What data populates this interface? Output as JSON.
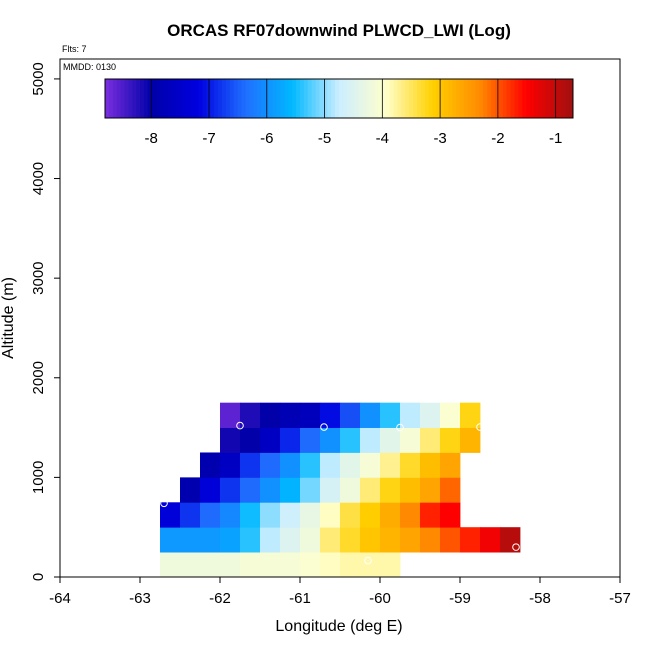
{
  "chart_data": {
    "type": "heatmap",
    "title": "ORCAS RF07downwind PLWCD_LWI (Log)",
    "flights_label": "Flts: 7",
    "date_label": "MMDD: 0130",
    "xlabel": "Longitude (deg E)",
    "ylabel": "Altitude (m)",
    "xlim": [
      -64,
      -57
    ],
    "ylim": [
      0,
      5200
    ],
    "x_ticks": [
      "-64",
      "-63",
      "-62",
      "-61",
      "-60",
      "-59",
      "-58",
      "-57"
    ],
    "y_ticks": [
      "0",
      "1000",
      "2000",
      "3000",
      "4000",
      "5000"
    ],
    "colorbar": {
      "range": [
        -8.8,
        -0.7
      ],
      "ticks": [
        "-8",
        "-7",
        "-6",
        "-5",
        "-4",
        "-3",
        "-2",
        "-1"
      ],
      "colors": [
        "#7b2fe0",
        "#0000a8",
        "#0000e0",
        "#1f6fff",
        "#00b8ff",
        "#cceeff",
        "#ffffcc",
        "#ffd000",
        "#ff8c00",
        "#ff0000",
        "#a01010"
      ]
    },
    "bin_width_deg": 0.25,
    "bin_height_m": 250,
    "rows": [
      {
        "alt_low": 0,
        "lon_start": -62.75,
        "values": [
          -4.2,
          -4.2,
          -4.2,
          -4.2,
          -4.1,
          -4.1,
          -4.1,
          -4.0,
          -3.9,
          -3.8,
          -3.8,
          -3.8
        ]
      },
      {
        "alt_low": 250,
        "lon_start": -62.75,
        "values": [
          -5.9,
          -5.9,
          -5.9,
          -5.8,
          -5.4,
          -4.8,
          -4.5,
          -4.2,
          -3.6,
          -3.3,
          -3.0,
          -2.8,
          -2.6,
          -2.3,
          -2.0,
          -1.7,
          -1.4,
          -0.9
        ]
      },
      {
        "alt_low": 500,
        "lon_start": -62.75,
        "values": [
          -7.3,
          -6.8,
          -6.4,
          -6.1,
          -5.5,
          -5.0,
          -4.7,
          -4.3,
          -3.9,
          -3.4,
          -3.1,
          -2.7,
          -2.3,
          -1.7,
          -1.5
        ]
      },
      {
        "alt_low": 750,
        "lon_start": -62.5,
        "values": [
          -7.9,
          -7.3,
          -6.8,
          -6.4,
          -6.0,
          -5.6,
          -5.1,
          -4.6,
          -4.2,
          -3.6,
          -3.2,
          -2.9,
          -2.6,
          -2.1
        ]
      },
      {
        "alt_low": 1000,
        "lon_start": -62.25,
        "values": [
          -7.9,
          -7.6,
          -6.8,
          -6.4,
          -6.0,
          -5.4,
          -4.8,
          -4.4,
          -4.1,
          -3.7,
          -3.3,
          -2.9,
          -2.6
        ]
      },
      {
        "alt_low": 1250,
        "lon_start": -62.0,
        "values": [
          -8.1,
          -8.0,
          -7.6,
          -6.9,
          -6.4,
          -6.0,
          -5.4,
          -4.8,
          -4.4,
          -4.1,
          -3.6,
          -3.2,
          -2.8
        ]
      },
      {
        "alt_low": 1500,
        "lon_start": -62.0,
        "values": [
          -8.6,
          -8.2,
          -8.0,
          -7.8,
          -7.7,
          -7.1,
          -6.6,
          -6.0,
          -5.4,
          -4.8,
          -4.5,
          -4.0,
          -3.2
        ]
      }
    ],
    "sample_points": [
      {
        "lon": -62.7,
        "alt": 740
      },
      {
        "lon": -61.75,
        "alt": 1520
      },
      {
        "lon": -60.7,
        "alt": 1505
      },
      {
        "lon": -59.75,
        "alt": 1500
      },
      {
        "lon": -58.75,
        "alt": 1505
      },
      {
        "lon": -58.3,
        "alt": 300
      },
      {
        "lon": -60.15,
        "alt": 165
      },
      {
        "lon": -59.15,
        "alt": 160
      }
    ]
  }
}
